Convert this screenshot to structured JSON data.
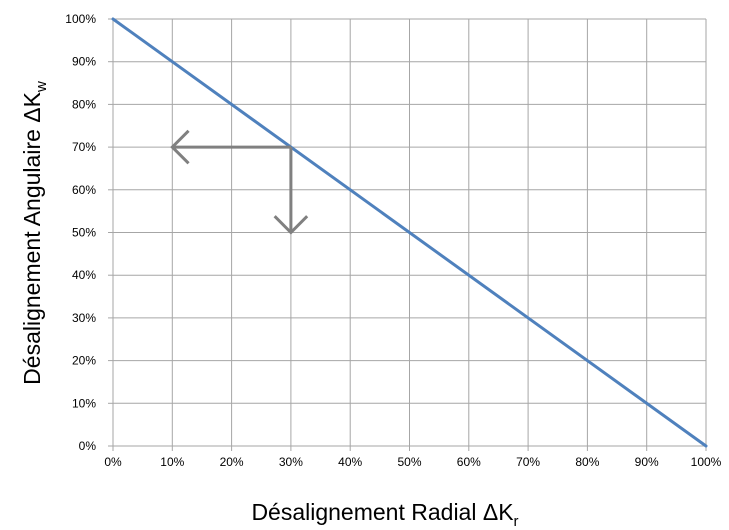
{
  "chart_data": {
    "type": "line",
    "title": "",
    "xlabel": {
      "text": "Désalignement Radial  ΔK",
      "subscript": "r"
    },
    "ylabel": {
      "text": "Désalignement Angulaire ΔK",
      "subscript": "w"
    },
    "xlim": [
      0,
      100
    ],
    "ylim": [
      0,
      100
    ],
    "x_ticks": [
      "0%",
      "10%",
      "20%",
      "30%",
      "40%",
      "50%",
      "60%",
      "70%",
      "80%",
      "90%",
      "100%"
    ],
    "y_ticks": [
      "0%",
      "10%",
      "20%",
      "30%",
      "40%",
      "50%",
      "60%",
      "70%",
      "80%",
      "90%",
      "100%"
    ],
    "grid": true,
    "series": [
      {
        "x": [
          0,
          100
        ],
        "y": [
          100,
          0
        ],
        "color": "#4F81BD"
      }
    ],
    "annotations": [
      {
        "kind": "arrow",
        "color": "#808080",
        "from": [
          30,
          70
        ],
        "to": [
          10,
          70
        ]
      },
      {
        "kind": "arrow",
        "color": "#808080",
        "from": [
          30,
          70
        ],
        "to": [
          30,
          50
        ]
      }
    ]
  }
}
